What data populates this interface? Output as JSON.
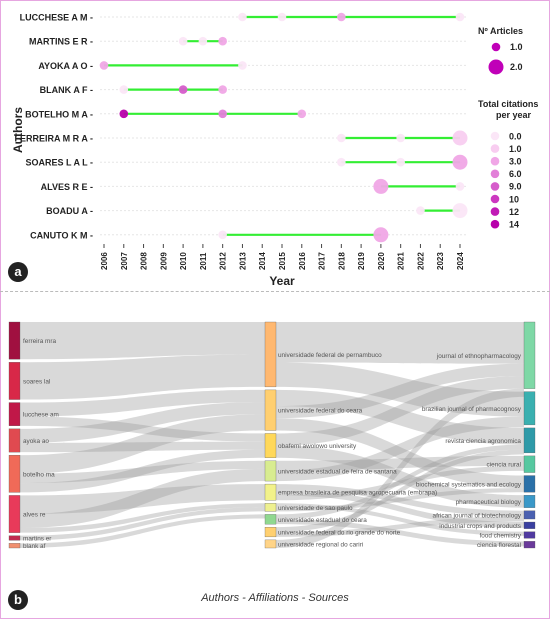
{
  "panels": {
    "a": "a",
    "b": "b"
  },
  "colors": {
    "timeline_line": "#33ee33",
    "article_dot_dark": "#c000b8",
    "citation_scale": [
      "#fbe6f7",
      "#f8cdf0",
      "#f0a6e6",
      "#e27fd8",
      "#d65ccb",
      "#cc38c0",
      "#c11bb6",
      "#b800ab"
    ]
  },
  "chart_data": [
    {
      "type": "scatter",
      "subtype": "author-production-over-time",
      "xlabel": "Year",
      "ylabel": "Authors",
      "x_ticks": [
        "2006",
        "2007",
        "2008",
        "2009",
        "2010",
        "2011",
        "2012",
        "2013",
        "2014",
        "2015",
        "2016",
        "2017",
        "2018",
        "2019",
        "2020",
        "2021",
        "2022",
        "2023",
        "2024"
      ],
      "xlim": [
        2006,
        2024
      ],
      "authors": [
        "LUCCHESE A M",
        "MARTINS E R",
        "AYOKA A O",
        "BLANK A F",
        "BOTELHO M A",
        "FERREIRA M R A",
        "SOARES L A L",
        "ALVES R E",
        "BOADU A",
        "CANUTO K M"
      ],
      "lines": [
        {
          "author": "LUCCHESE A M",
          "start": 2013,
          "end": 2024
        },
        {
          "author": "MARTINS E R",
          "start": 2010,
          "end": 2012
        },
        {
          "author": "AYOKA A O",
          "start": 2006,
          "end": 2013
        },
        {
          "author": "BLANK A F",
          "start": 2007,
          "end": 2012
        },
        {
          "author": "BOTELHO M A",
          "start": 2007,
          "end": 2016
        },
        {
          "author": "FERREIRA M R A",
          "start": 2018,
          "end": 2024
        },
        {
          "author": "SOARES L A L",
          "start": 2018,
          "end": 2024
        },
        {
          "author": "ALVES R E",
          "start": 2020,
          "end": 2024
        },
        {
          "author": "BOADU A",
          "start": 2022,
          "end": 2024
        },
        {
          "author": "CANUTO K M",
          "start": 2012,
          "end": 2020
        }
      ],
      "points": [
        {
          "author": "LUCCHESE A M",
          "year": 2013,
          "articles": 1,
          "citations": 0.5
        },
        {
          "author": "LUCCHESE A M",
          "year": 2015,
          "articles": 1,
          "citations": 0.3
        },
        {
          "author": "LUCCHESE A M",
          "year": 2018,
          "articles": 1,
          "citations": 3.0
        },
        {
          "author": "LUCCHESE A M",
          "year": 2024,
          "articles": 1,
          "citations": 0.3
        },
        {
          "author": "MARTINS E R",
          "year": 2010,
          "articles": 1,
          "citations": 0.5
        },
        {
          "author": "MARTINS E R",
          "year": 2011,
          "articles": 1,
          "citations": 0.5
        },
        {
          "author": "MARTINS E R",
          "year": 2012,
          "articles": 1,
          "citations": 2.0
        },
        {
          "author": "AYOKA A O",
          "year": 2006,
          "articles": 1,
          "citations": 3.0
        },
        {
          "author": "AYOKA A O",
          "year": 2013,
          "articles": 1,
          "citations": 0.5
        },
        {
          "author": "BLANK A F",
          "year": 2007,
          "articles": 1,
          "citations": 0.5
        },
        {
          "author": "BLANK A F",
          "year": 2010,
          "articles": 1,
          "citations": 9.0
        },
        {
          "author": "BLANK A F",
          "year": 2012,
          "articles": 1,
          "citations": 2.0
        },
        {
          "author": "BOTELHO M A",
          "year": 2007,
          "articles": 1,
          "citations": 14
        },
        {
          "author": "BOTELHO M A",
          "year": 2012,
          "articles": 1,
          "citations": 6.0
        },
        {
          "author": "BOTELHO M A",
          "year": 2016,
          "articles": 1,
          "citations": 3.0
        },
        {
          "author": "FERREIRA M R A",
          "year": 2018,
          "articles": 1,
          "citations": 0.3
        },
        {
          "author": "FERREIRA M R A",
          "year": 2021,
          "articles": 1,
          "citations": 0.5
        },
        {
          "author": "FERREIRA M R A",
          "year": 2024,
          "articles": 2,
          "citations": 1.0
        },
        {
          "author": "SOARES L A L",
          "year": 2018,
          "articles": 1,
          "citations": 0.3
        },
        {
          "author": "SOARES L A L",
          "year": 2021,
          "articles": 1,
          "citations": 0.5
        },
        {
          "author": "SOARES L A L",
          "year": 2024,
          "articles": 2,
          "citations": 2.0
        },
        {
          "author": "ALVES R E",
          "year": 2020,
          "articles": 2,
          "citations": 3.0
        },
        {
          "author": "ALVES R E",
          "year": 2024,
          "articles": 1,
          "citations": 0.3
        },
        {
          "author": "BOADU A",
          "year": 2022,
          "articles": 1,
          "citations": 0.3
        },
        {
          "author": "BOADU A",
          "year": 2024,
          "articles": 2,
          "citations": 0.5
        },
        {
          "author": "CANUTO K M",
          "year": 2012,
          "articles": 1,
          "citations": 0.3
        },
        {
          "author": "CANUTO K M",
          "year": 2020,
          "articles": 2,
          "citations": 3.0
        }
      ],
      "legend_articles": {
        "title": "Nº Articles",
        "items": [
          "1.0",
          "2.0"
        ]
      },
      "legend_citations": {
        "title_line1": "Total citations",
        "title_line2": "per year",
        "items": [
          "0.0",
          "1.0",
          "3.0",
          "6.0",
          "9.0",
          "10",
          "12",
          "14"
        ]
      }
    },
    {
      "type": "sankey",
      "caption": "Authors - Affiliations - Sources",
      "authors": [
        {
          "name": "ferreira mra",
          "value": 4,
          "color": "#a01040"
        },
        {
          "name": "soares lal",
          "value": 4,
          "color": "#d82848"
        },
        {
          "name": "lucchese am",
          "value": 2.5,
          "color": "#c01848"
        },
        {
          "name": "ayoka ao",
          "value": 2.5,
          "color": "#e04a50"
        },
        {
          "name": "botelho ma",
          "value": 4,
          "color": "#f06a58"
        },
        {
          "name": "alves re",
          "value": 4,
          "color": "#e83a5a"
        },
        {
          "name": "martins er",
          "value": 0.5,
          "color": "#c02a50"
        },
        {
          "name": "blank af",
          "value": 0.5,
          "color": "#f09070"
        }
      ],
      "affiliations": [
        {
          "name": "universidade federal de pernambuco",
          "value": 8,
          "color": "#ffb870"
        },
        {
          "name": "universidade federal do ceara",
          "value": 5,
          "color": "#ffcf70"
        },
        {
          "name": "obafemi awolowo university",
          "value": 3,
          "color": "#ffd85a"
        },
        {
          "name": "universidade estadual de feira de santana",
          "value": 2.5,
          "color": "#d8ec90"
        },
        {
          "name": "empresa brasileira de pesquisa agropecuaria (embrapa)",
          "value": 2,
          "color": "#f2f28a"
        },
        {
          "name": "universidade de sao paulo",
          "value": 1,
          "color": "#eef090"
        },
        {
          "name": "universidade estadual do ceara",
          "value": 1.2,
          "color": "#90d890"
        },
        {
          "name": "universidade federal do rio grande do norte",
          "value": 1.2,
          "color": "#ffd070"
        },
        {
          "name": "universidade regional do cariri",
          "value": 1,
          "color": "#ffd488"
        }
      ],
      "sources": [
        {
          "name": "journal of ethnopharmacology",
          "value": 8,
          "color": "#7ed8a6"
        },
        {
          "name": "brazilian journal of pharmacognosy",
          "value": 4,
          "color": "#3ab0b0"
        },
        {
          "name": "revista ciencia agronomica",
          "value": 3,
          "color": "#2e9aa8"
        },
        {
          "name": "ciencia rural",
          "value": 2,
          "color": "#56c8a0"
        },
        {
          "name": "biochemical systematics and ecology",
          "value": 2,
          "color": "#2a70a8"
        },
        {
          "name": "pharmaceutical biology",
          "value": 1.5,
          "color": "#3a98c8"
        },
        {
          "name": "african journal of biotechnology",
          "value": 1,
          "color": "#4a60b0"
        },
        {
          "name": "industrial crops and products",
          "value": 0.8,
          "color": "#3a40a0"
        },
        {
          "name": "food chemistry",
          "value": 0.8,
          "color": "#503aa0"
        },
        {
          "name": "ciencia florestal",
          "value": 0.8,
          "color": "#6a3a9a"
        }
      ],
      "links_author_affiliation": [
        [
          "ferreira mra",
          "universidade federal de pernambuco",
          4
        ],
        [
          "soares lal",
          "universidade federal de pernambuco",
          4
        ],
        [
          "lucchese am",
          "universidade federal do ceara",
          1.5
        ],
        [
          "lucchese am",
          "obafemi awolowo university",
          1
        ],
        [
          "ayoka ao",
          "universidade federal do ceara",
          1.5
        ],
        [
          "ayoka ao",
          "obafemi awolowo university",
          1
        ],
        [
          "botelho ma",
          "universidade federal do ceara",
          2
        ],
        [
          "botelho ma",
          "universidade estadual de feira de santana",
          1
        ],
        [
          "botelho ma",
          "obafemi awolowo university",
          1
        ],
        [
          "alves re",
          "empresa brasileira de pesquisa agropecuaria (embrapa)",
          2
        ],
        [
          "alves re",
          "universidade estadual de feira de santana",
          1.5
        ],
        [
          "alves re",
          "universidade de sao paulo",
          0.5
        ],
        [
          "martins er",
          "universidade de sao paulo",
          0.5
        ],
        [
          "blank af",
          "universidade estadual do ceara",
          0.5
        ]
      ],
      "links_affiliation_source": [
        [
          "universidade federal de pernambuco",
          "journal of ethnopharmacology",
          5
        ],
        [
          "universidade federal de pernambuco",
          "brazilian journal of pharmacognosy",
          3
        ],
        [
          "universidade federal do ceara",
          "revista ciencia agronomica",
          2
        ],
        [
          "universidade federal do ceara",
          "journal of ethnopharmacology",
          1.5
        ],
        [
          "universidade federal do ceara",
          "biochemical systematics and ecology",
          1.5
        ],
        [
          "obafemi awolowo university",
          "journal of ethnopharmacology",
          1.5
        ],
        [
          "obafemi awolowo university",
          "pharmaceutical biology",
          1.5
        ],
        [
          "universidade estadual de feira de santana",
          "ciencia rural",
          1.2
        ],
        [
          "universidade estadual de feira de santana",
          "brazilian journal of pharmacognosy",
          1.3
        ],
        [
          "empresa brasileira de pesquisa agropecuaria (embrapa)",
          "african journal of biotechnology",
          0.7
        ],
        [
          "empresa brasileira de pesquisa agropecuaria (embrapa)",
          "industrial crops and products",
          0.7
        ],
        [
          "empresa brasileira de pesquisa agropecuaria (embrapa)",
          "ciencia rural",
          0.6
        ],
        [
          "universidade de sao paulo",
          "food chemistry",
          0.5
        ],
        [
          "universidade de sao paulo",
          "biochemical systematics and ecology",
          0.5
        ],
        [
          "universidade estadual do ceara",
          "revista ciencia agronomica",
          0.6
        ],
        [
          "universidade estadual do ceara",
          "ciencia florestal",
          0.6
        ],
        [
          "universidade federal do rio grande do norte",
          "revista ciencia agronomica",
          0.6
        ],
        [
          "universidade federal do rio grande do norte",
          "african journal of biotechnology",
          0.6
        ],
        [
          "universidade regional do cariri",
          "journal of ethnopharmacology",
          1
        ]
      ]
    }
  ]
}
